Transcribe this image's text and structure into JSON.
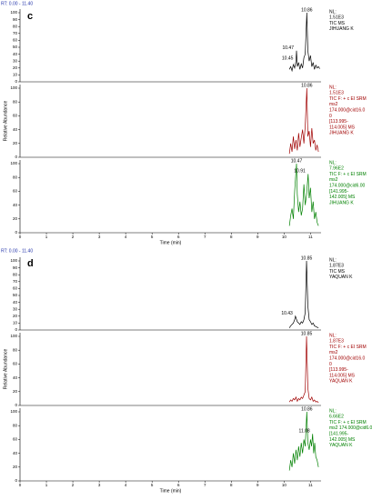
{
  "panels": [
    {
      "label": "c",
      "range_text": "RT: 0.00 - 11.40"
    },
    {
      "label": "d",
      "range_text": "RT: 0.00 - 11.40"
    }
  ],
  "chart_data": [
    {
      "type": "line",
      "xlim": [
        0,
        11.4
      ],
      "ylim": [
        0,
        100
      ],
      "yticks": [
        0,
        10,
        20,
        30,
        40,
        50,
        60,
        70,
        80,
        90,
        100
      ],
      "color": "#000000",
      "x": [
        10.2,
        10.25,
        10.3,
        10.35,
        10.4,
        10.45,
        10.47,
        10.5,
        10.55,
        10.6,
        10.65,
        10.7,
        10.75,
        10.8,
        10.86,
        10.9,
        10.95,
        11.0,
        11.05,
        11.1,
        11.15,
        11.2,
        11.25,
        11.3,
        11.35
      ],
      "values": [
        18,
        22,
        16,
        25,
        20,
        30,
        45,
        22,
        28,
        18,
        26,
        20,
        35,
        40,
        100,
        45,
        30,
        38,
        22,
        28,
        18,
        24,
        20,
        22,
        19
      ],
      "annotations": [
        {
          "x": 10.86,
          "y": 100,
          "text": "10.86"
        },
        {
          "x": 10.47,
          "y": 45,
          "text": "10.47"
        },
        {
          "x": 10.45,
          "y": 30,
          "text": "10.45"
        }
      ],
      "info": [
        "NL:",
        "1.51E3",
        "TIC  MS",
        "JIHUANG K"
      ]
    },
    {
      "type": "line",
      "xlim": [
        0,
        11.4
      ],
      "ylim": [
        0,
        100
      ],
      "yticks": [
        0,
        20,
        40,
        60,
        80,
        100
      ],
      "color": "#a00000",
      "y_label": "Relative Abundance",
      "x": [
        10.2,
        10.25,
        10.3,
        10.35,
        10.4,
        10.45,
        10.5,
        10.55,
        10.6,
        10.65,
        10.7,
        10.75,
        10.8,
        10.86,
        10.9,
        10.95,
        11.0,
        11.05,
        11.1,
        11.15,
        11.2,
        11.25,
        11.3
      ],
      "values": [
        5,
        20,
        8,
        30,
        12,
        25,
        10,
        35,
        15,
        28,
        40,
        20,
        45,
        100,
        30,
        38,
        15,
        42,
        20,
        25,
        10,
        18,
        8
      ],
      "annotations": [
        {
          "x": 10.86,
          "y": 100,
          "text": "10.86"
        }
      ],
      "info": [
        "NL:",
        "1.51E3",
        "TIC F: + c EI SRM",
        "ms2",
        "174.000@cid16.0",
        "0",
        "[113.995-",
        "114.005]  MS",
        "JIHUANG K"
      ]
    },
    {
      "type": "line",
      "xlim": [
        0,
        11.4
      ],
      "ylim": [
        0,
        100
      ],
      "yticks": [
        0,
        20,
        40,
        60,
        80,
        100
      ],
      "color": "#008000",
      "xticks": [
        0,
        1,
        2,
        3,
        4,
        5,
        6,
        7,
        8,
        9,
        10,
        11
      ],
      "x_label": "Time (min)",
      "x": [
        10.2,
        10.25,
        10.3,
        10.35,
        10.4,
        10.47,
        10.5,
        10.55,
        10.6,
        10.65,
        10.7,
        10.75,
        10.8,
        10.85,
        10.91,
        10.95,
        11.0,
        11.05,
        11.1,
        11.15,
        11.2,
        11.25,
        11.3
      ],
      "values": [
        10,
        25,
        35,
        20,
        60,
        100,
        55,
        30,
        45,
        25,
        35,
        70,
        40,
        55,
        85,
        50,
        65,
        30,
        45,
        20,
        30,
        15,
        10
      ],
      "annotations": [
        {
          "x": 10.47,
          "y": 100,
          "text": "10.47"
        },
        {
          "x": 10.91,
          "y": 85,
          "text": "10.91"
        }
      ],
      "info": [
        "NL:",
        "7.96E2",
        "TIC F: + c EI SRM",
        "ms2",
        "174.000@cid6.00",
        "[141.995-",
        "142.005]  MS",
        "JIHUANG K"
      ]
    },
    {
      "type": "line",
      "xlim": [
        0,
        11.4
      ],
      "ylim": [
        0,
        100
      ],
      "yticks": [
        0,
        10,
        20,
        30,
        40,
        50,
        60,
        70,
        80,
        90,
        100
      ],
      "color": "#000000",
      "x": [
        10.2,
        10.25,
        10.3,
        10.35,
        10.4,
        10.43,
        10.5,
        10.55,
        10.6,
        10.65,
        10.7,
        10.75,
        10.8,
        10.85,
        10.9,
        10.95,
        11.0,
        11.05,
        11.1,
        11.15,
        11.2,
        11.25,
        11.3
      ],
      "values": [
        3,
        6,
        8,
        10,
        15,
        20,
        12,
        10,
        8,
        12,
        10,
        15,
        25,
        100,
        35,
        15,
        12,
        8,
        10,
        6,
        5,
        4,
        3
      ],
      "annotations": [
        {
          "x": 10.85,
          "y": 100,
          "text": "10.85"
        },
        {
          "x": 10.43,
          "y": 20,
          "text": "10.43"
        }
      ],
      "info": [
        "NL:",
        "1.87E3",
        "TIC  MS",
        "YAQUAN K"
      ]
    },
    {
      "type": "line",
      "xlim": [
        0,
        11.4
      ],
      "ylim": [
        0,
        100
      ],
      "yticks": [
        0,
        20,
        40,
        60,
        80,
        100
      ],
      "color": "#a00000",
      "y_label": "Relative Abundance",
      "x": [
        10.2,
        10.25,
        10.3,
        10.35,
        10.4,
        10.45,
        10.5,
        10.55,
        10.6,
        10.65,
        10.7,
        10.75,
        10.8,
        10.85,
        10.9,
        10.95,
        11.0,
        11.05,
        11.1,
        11.15,
        11.2,
        11.25,
        11.3
      ],
      "values": [
        5,
        8,
        6,
        10,
        8,
        12,
        6,
        10,
        8,
        12,
        10,
        15,
        20,
        100,
        25,
        10,
        8,
        12,
        6,
        8,
        5,
        6,
        4
      ],
      "annotations": [
        {
          "x": 10.85,
          "y": 100,
          "text": "10.85"
        }
      ],
      "info": [
        "NL:",
        "1.87E3",
        "TIC F: + c EI SRM",
        "ms2",
        "174.000@cid16.0",
        "0",
        "[113.995-",
        "114.005]  MS",
        "YAQUAN K"
      ]
    },
    {
      "type": "line",
      "xlim": [
        0,
        11.4
      ],
      "ylim": [
        0,
        100
      ],
      "yticks": [
        0,
        20,
        40,
        60,
        80,
        100
      ],
      "color": "#008000",
      "xticks": [
        0,
        1,
        2,
        3,
        4,
        5,
        6,
        7,
        8,
        9,
        10,
        11
      ],
      "x_label": "Time (min)",
      "x": [
        10.2,
        10.25,
        10.3,
        10.35,
        10.4,
        10.45,
        10.5,
        10.55,
        10.6,
        10.65,
        10.7,
        10.75,
        10.8,
        10.86,
        10.9,
        10.95,
        11.0,
        11.04,
        11.08,
        11.12,
        11.16,
        11.2,
        11.25,
        11.3
      ],
      "values": [
        15,
        30,
        20,
        40,
        25,
        45,
        30,
        50,
        35,
        55,
        40,
        60,
        50,
        100,
        55,
        45,
        60,
        50,
        68,
        40,
        55,
        35,
        30,
        20
      ],
      "annotations": [
        {
          "x": 10.86,
          "y": 100,
          "text": "10.86"
        },
        {
          "x": 11.08,
          "y": 68,
          "text": "11.08"
        }
      ],
      "info": [
        "NL:",
        "6.66E2",
        "TIC F: + c EI SRM",
        "ms2  174.000@cid6.00",
        "[141.995-",
        "142.005]  MS",
        "YAQUAN K"
      ]
    }
  ]
}
